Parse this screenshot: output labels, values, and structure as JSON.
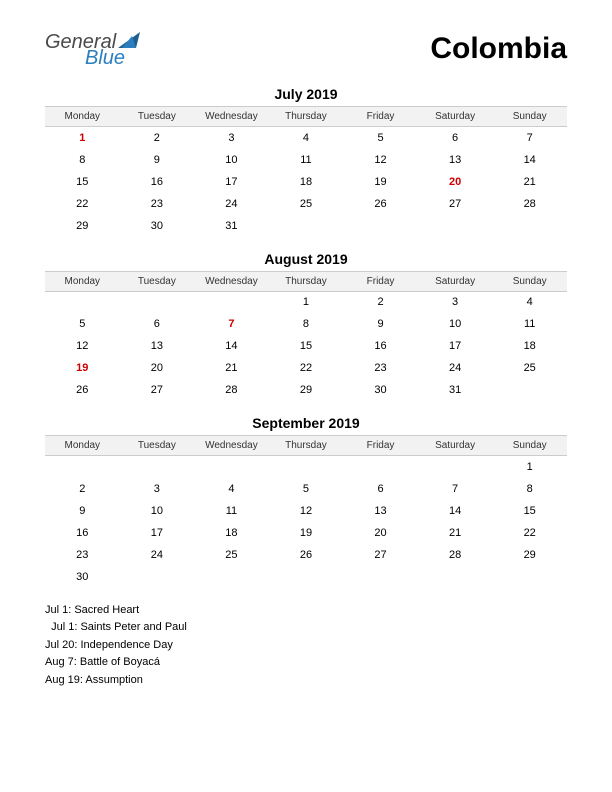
{
  "logo": {
    "general": "General",
    "blue": "Blue"
  },
  "country": "Colombia",
  "weekdays": [
    "Monday",
    "Tuesday",
    "Wednesday",
    "Thursday",
    "Friday",
    "Saturday",
    "Sunday"
  ],
  "colors": {
    "holiday": "#cc0000",
    "header_bg": "#f2f2f2",
    "header_border": "#cccccc",
    "logo_general": "#4a4a4a",
    "logo_blue": "#2b7fbf",
    "logo_triangle": "#1f5f8f"
  },
  "months": [
    {
      "title": "July 2019",
      "weeks": [
        [
          {
            "d": "1",
            "h": true
          },
          {
            "d": "2"
          },
          {
            "d": "3"
          },
          {
            "d": "4"
          },
          {
            "d": "5"
          },
          {
            "d": "6"
          },
          {
            "d": "7"
          }
        ],
        [
          {
            "d": "8"
          },
          {
            "d": "9"
          },
          {
            "d": "10"
          },
          {
            "d": "11"
          },
          {
            "d": "12"
          },
          {
            "d": "13"
          },
          {
            "d": "14"
          }
        ],
        [
          {
            "d": "15"
          },
          {
            "d": "16"
          },
          {
            "d": "17"
          },
          {
            "d": "18"
          },
          {
            "d": "19"
          },
          {
            "d": "20",
            "h": true
          },
          {
            "d": "21"
          }
        ],
        [
          {
            "d": "22"
          },
          {
            "d": "23"
          },
          {
            "d": "24"
          },
          {
            "d": "25"
          },
          {
            "d": "26"
          },
          {
            "d": "27"
          },
          {
            "d": "28"
          }
        ],
        [
          {
            "d": "29"
          },
          {
            "d": "30"
          },
          {
            "d": "31"
          },
          {
            "d": ""
          },
          {
            "d": ""
          },
          {
            "d": ""
          },
          {
            "d": ""
          }
        ]
      ]
    },
    {
      "title": "August 2019",
      "weeks": [
        [
          {
            "d": ""
          },
          {
            "d": ""
          },
          {
            "d": ""
          },
          {
            "d": "1"
          },
          {
            "d": "2"
          },
          {
            "d": "3"
          },
          {
            "d": "4"
          }
        ],
        [
          {
            "d": "5"
          },
          {
            "d": "6"
          },
          {
            "d": "7",
            "h": true
          },
          {
            "d": "8"
          },
          {
            "d": "9"
          },
          {
            "d": "10"
          },
          {
            "d": "11"
          }
        ],
        [
          {
            "d": "12"
          },
          {
            "d": "13"
          },
          {
            "d": "14"
          },
          {
            "d": "15"
          },
          {
            "d": "16"
          },
          {
            "d": "17"
          },
          {
            "d": "18"
          }
        ],
        [
          {
            "d": "19",
            "h": true
          },
          {
            "d": "20"
          },
          {
            "d": "21"
          },
          {
            "d": "22"
          },
          {
            "d": "23"
          },
          {
            "d": "24"
          },
          {
            "d": "25"
          }
        ],
        [
          {
            "d": "26"
          },
          {
            "d": "27"
          },
          {
            "d": "28"
          },
          {
            "d": "29"
          },
          {
            "d": "30"
          },
          {
            "d": "31"
          },
          {
            "d": ""
          }
        ]
      ]
    },
    {
      "title": "September 2019",
      "weeks": [
        [
          {
            "d": ""
          },
          {
            "d": ""
          },
          {
            "d": ""
          },
          {
            "d": ""
          },
          {
            "d": ""
          },
          {
            "d": ""
          },
          {
            "d": "1"
          }
        ],
        [
          {
            "d": "2"
          },
          {
            "d": "3"
          },
          {
            "d": "4"
          },
          {
            "d": "5"
          },
          {
            "d": "6"
          },
          {
            "d": "7"
          },
          {
            "d": "8"
          }
        ],
        [
          {
            "d": "9"
          },
          {
            "d": "10"
          },
          {
            "d": "11"
          },
          {
            "d": "12"
          },
          {
            "d": "13"
          },
          {
            "d": "14"
          },
          {
            "d": "15"
          }
        ],
        [
          {
            "d": "16"
          },
          {
            "d": "17"
          },
          {
            "d": "18"
          },
          {
            "d": "19"
          },
          {
            "d": "20"
          },
          {
            "d": "21"
          },
          {
            "d": "22"
          }
        ],
        [
          {
            "d": "23"
          },
          {
            "d": "24"
          },
          {
            "d": "25"
          },
          {
            "d": "26"
          },
          {
            "d": "27"
          },
          {
            "d": "28"
          },
          {
            "d": "29"
          }
        ],
        [
          {
            "d": "30"
          },
          {
            "d": ""
          },
          {
            "d": ""
          },
          {
            "d": ""
          },
          {
            "d": ""
          },
          {
            "d": ""
          },
          {
            "d": ""
          }
        ]
      ]
    }
  ],
  "holiday_list": [
    "Jul 1: Sacred Heart",
    "  Jul 1: Saints Peter and Paul",
    "Jul 20: Independence Day",
    "Aug 7: Battle of Boyacá",
    "Aug 19: Assumption"
  ]
}
